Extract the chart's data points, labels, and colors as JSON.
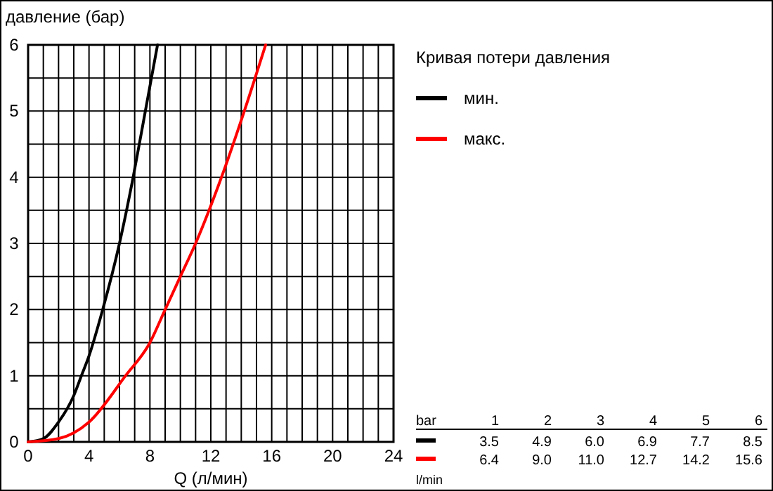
{
  "chart_data": {
    "type": "line",
    "xlabel": "Q (л/мин)",
    "ylabel": "давление (бар)",
    "legend_title": "Кривая потери давления",
    "legend": "right",
    "grid": true,
    "xlim": [
      0,
      24
    ],
    "ylim": [
      0,
      6
    ],
    "xticks": [
      0,
      {
        "value": 1,
        "label": null
      },
      {
        "value": 2,
        "label": null
      },
      {
        "value": 3,
        "label": null
      },
      4,
      {
        "value": 5,
        "label": null
      },
      {
        "value": 6,
        "label": null
      },
      {
        "value": 7,
        "label": null
      },
      8,
      {
        "value": 9,
        "label": null
      },
      {
        "value": 10,
        "label": null
      },
      {
        "value": 11,
        "label": null
      },
      12,
      {
        "value": 13,
        "label": null
      },
      {
        "value": 14,
        "label": null
      },
      {
        "value": 15,
        "label": null
      },
      16,
      {
        "value": 17,
        "label": null
      },
      {
        "value": 18,
        "label": null
      },
      {
        "value": 19,
        "label": null
      },
      20,
      {
        "value": 21,
        "label": null
      },
      {
        "value": 22,
        "label": null
      },
      {
        "value": 23,
        "label": null
      },
      24
    ],
    "yticks": [
      0,
      {
        "value": 0.5,
        "label": null
      },
      1,
      {
        "value": 1.5,
        "label": null
      },
      2,
      {
        "value": 2.5,
        "label": null
      },
      3,
      {
        "value": 3.5,
        "label": null
      },
      4,
      {
        "value": 4.5,
        "label": null
      },
      5,
      {
        "value": 5.5,
        "label": null
      },
      6
    ],
    "annotations": [
      "bar",
      "1",
      "2",
      "3",
      "4",
      "5",
      "6",
      "3.5",
      "4.9",
      "6.0",
      "6.9",
      "7.7",
      "8.5",
      "6.4",
      "9.0",
      "11.0",
      "12.7",
      "14.2",
      "15.6",
      "l/min"
    ],
    "series": [
      {
        "name": "мин.",
        "color": "#000000",
        "x": [
          0,
          1,
          2,
          3,
          3.5,
          4,
          4.9,
          6,
          6.9,
          7.7,
          8.5
        ],
        "values": [
          0,
          0.05,
          0.3,
          0.7,
          1,
          1.3,
          2,
          3,
          4,
          5,
          6
        ]
      },
      {
        "name": "макс.",
        "color": "#ff0000",
        "x": [
          0,
          2,
          4,
          6.4,
          8,
          9,
          10,
          11,
          12.7,
          14.2,
          15.6
        ],
        "values": [
          0,
          0.05,
          0.3,
          1,
          1.5,
          2,
          2.5,
          3,
          4,
          5,
          6
        ]
      }
    ]
  }
}
